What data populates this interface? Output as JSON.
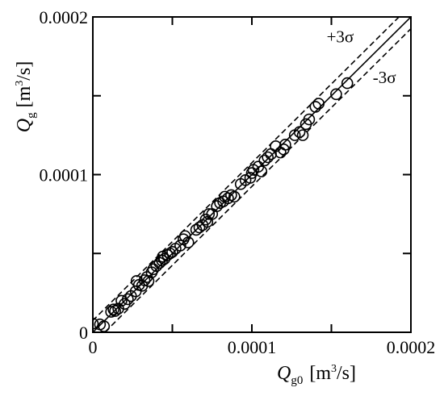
{
  "chart_data": {
    "type": "scatter",
    "xlim": [
      0,
      0.0002
    ],
    "ylim": [
      0,
      0.0002
    ],
    "x_ticks": [
      {
        "value": 0,
        "label": "0"
      },
      {
        "value": 0.0001,
        "label": "0.0001"
      },
      {
        "value": 0.0002,
        "label": "0.0002"
      }
    ],
    "y_ticks": [
      {
        "value": 0,
        "label": "0"
      },
      {
        "value": 0.0001,
        "label": "0.0001"
      },
      {
        "value": 0.0002,
        "label": "0.0002"
      }
    ],
    "minor_tick_step": 5e-05,
    "xlabel": {
      "main": "Q",
      "sub": "g0",
      "unit_open": "[m",
      "unit_sup": "3",
      "unit_close": "/s]"
    },
    "ylabel": {
      "main": "Q",
      "sub": "g",
      "unit_open": "[m",
      "unit_sup": "3",
      "unit_close": "/s]"
    },
    "grid": false,
    "marker": "open-circle",
    "lines": [
      {
        "label": "",
        "style": "solid",
        "slope": 1,
        "offset": 0
      },
      {
        "label": "+3σ",
        "style": "dashed",
        "slope": 1,
        "offset": 7.5e-06
      },
      {
        "label": "-3σ",
        "style": "dashed",
        "slope": 1,
        "offset": -7.5e-06
      }
    ],
    "annotations": [
      {
        "text": "+3σ",
        "x": 0.000147,
        "y": 0.000184
      },
      {
        "text": "-3σ",
        "x": 0.000176,
        "y": 0.000158
      }
    ],
    "points": [
      [
        0.0,
        5.5e-06
      ],
      [
        4.5e-06,
        5e-06
      ],
      [
        7e-06,
        3.8e-06
      ],
      [
        1.15e-05,
        1.3e-05
      ],
      [
        1.3e-05,
        1.45e-05
      ],
      [
        1.4e-05,
        1.35e-05
      ],
      [
        1.6e-05,
        1.5e-05
      ],
      [
        1.8e-05,
        2e-05
      ],
      [
        2e-05,
        1.8e-05
      ],
      [
        2.2e-05,
        2.1e-05
      ],
      [
        2.4e-05,
        2.3e-05
      ],
      [
        2.7e-05,
        2.6e-05
      ],
      [
        2.75e-05,
        3.25e-05
      ],
      [
        2.9e-05,
        3e-05
      ],
      [
        3.1e-05,
        2.95e-05
      ],
      [
        3.25e-05,
        3.3e-05
      ],
      [
        3.4e-05,
        3.5e-05
      ],
      [
        3.5e-05,
        3.25e-05
      ],
      [
        3.7e-05,
        3.8e-05
      ],
      [
        3.8e-05,
        4e-05
      ],
      [
        4e-05,
        4.2e-05
      ],
      [
        4.2e-05,
        4.4e-05
      ],
      [
        4.35e-05,
        4.55e-05
      ],
      [
        4.4e-05,
        4.8e-05
      ],
      [
        4.5e-05,
        4.65e-05
      ],
      [
        4.7e-05,
        4.9e-05
      ],
      [
        4.85e-05,
        5e-05
      ],
      [
        5e-05,
        5.1e-05
      ],
      [
        5.2e-05,
        5.3e-05
      ],
      [
        5.5e-05,
        5.5e-05
      ],
      [
        5.7e-05,
        5.9e-05
      ],
      [
        5.8e-05,
        6.1e-05
      ],
      [
        6e-05,
        5.7e-05
      ],
      [
        6.5e-05,
        6.5e-05
      ],
      [
        6.7e-05,
        6.65e-05
      ],
      [
        6.9e-05,
        6.8e-05
      ],
      [
        7.1e-05,
        7.15e-05
      ],
      [
        7.2e-05,
        7e-05
      ],
      [
        7.3e-05,
        7.5e-05
      ],
      [
        7.5e-05,
        7.5e-05
      ],
      [
        7.8e-05,
        8e-05
      ],
      [
        8e-05,
        8.2e-05
      ],
      [
        8.2e-05,
        8.3e-05
      ],
      [
        8.3e-05,
        8.6e-05
      ],
      [
        8.5e-05,
        8.5e-05
      ],
      [
        8.7e-05,
        8.7e-05
      ],
      [
        8.9e-05,
        8.6e-05
      ],
      [
        9.3e-05,
        9.4e-05
      ],
      [
        9.6e-05,
        9.65e-05
      ],
      [
        9.9e-05,
        9.8e-05
      ],
      [
        0.0001,
        0.000101
      ],
      [
        0.000101,
        0.000103
      ],
      [
        0.000104,
        0.000105
      ],
      [
        0.000106,
        0.000102
      ],
      [
        0.000108,
        0.000109
      ],
      [
        0.00011,
        0.000111
      ],
      [
        0.000112,
        0.000113
      ],
      [
        0.000115,
        0.000118
      ],
      [
        0.000118,
        0.000114
      ],
      [
        0.00012,
        0.000116
      ],
      [
        0.000121,
        0.000119
      ],
      [
        0.000127,
        0.000125
      ],
      [
        0.00013,
        0.000127
      ],
      [
        0.000132,
        0.000125
      ],
      [
        0.000134,
        0.000132
      ],
      [
        0.000136,
        0.000135
      ],
      [
        0.00014,
        0.000143
      ],
      [
        0.000142,
        0.000145
      ],
      [
        0.000153,
        0.000151
      ],
      [
        0.00016,
        0.000158
      ]
    ]
  }
}
